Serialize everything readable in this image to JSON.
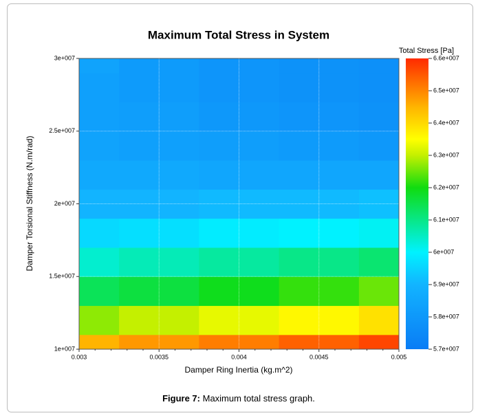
{
  "chart_data": {
    "type": "contour",
    "title": "Maximum Total Stress in System",
    "xlabel": "Damper Ring Inertia (kg.m^2)",
    "ylabel": "Damper Torsional Stiffness (N.m/rad)",
    "colorbar_label": "Total Stress [Pa]",
    "x": [
      0.003,
      0.0035,
      0.004,
      0.0045,
      0.005
    ],
    "y": [
      10000000,
      12000000,
      14000000,
      16000000,
      18000000,
      20000000,
      22000000,
      24000000,
      26000000,
      28000000,
      30000000
    ],
    "z": [
      [
        64500000,
        64800000,
        65100000,
        65400000,
        65700000
      ],
      [
        62700000,
        63000000,
        63300000,
        63600000,
        63900000
      ],
      [
        61400000,
        61600000,
        61900000,
        62200000,
        62500000
      ],
      [
        60400000,
        60600000,
        60800000,
        61000000,
        61200000
      ],
      [
        59600000,
        59700000,
        59900000,
        60000000,
        60100000
      ],
      [
        59000000,
        59000000,
        59100000,
        59100000,
        59200000
      ],
      [
        58600000,
        58600000,
        58500000,
        58500000,
        58500000
      ],
      [
        58400000,
        58300000,
        58200000,
        58100000,
        58000000
      ],
      [
        58300000,
        58200000,
        58000000,
        57900000,
        57800000
      ],
      [
        58300000,
        58100000,
        57900000,
        57800000,
        57700000
      ],
      [
        58400000,
        58100000,
        57900000,
        57800000,
        57700000
      ]
    ],
    "colorscale": [
      [
        57000000,
        "#0a7cf5"
      ],
      [
        59000000,
        "#12b4ff"
      ],
      [
        60000000,
        "#00f2ff"
      ],
      [
        62000000,
        "#10dc10"
      ],
      [
        63000000,
        "#c4f000"
      ],
      [
        63500000,
        "#ffff00"
      ],
      [
        64500000,
        "#ffb400"
      ],
      [
        66000000,
        "#ff2a00"
      ]
    ],
    "xlim": [
      0.003,
      0.005
    ],
    "ylim": [
      10000000,
      30000000
    ],
    "zlim": [
      57000000,
      66000000
    ],
    "xticks": [
      0.003,
      0.0035,
      0.004,
      0.0045,
      0.005
    ],
    "yticks": [
      {
        "value": 10000000,
        "label": "1e+007"
      },
      {
        "value": 15000000,
        "label": "1.5e+007"
      },
      {
        "value": 20000000,
        "label": "2e+007"
      },
      {
        "value": 25000000,
        "label": "2.5e+007"
      },
      {
        "value": 30000000,
        "label": "3e+007"
      }
    ],
    "zticks": [
      {
        "value": 57000000,
        "label": "5.7e+007"
      },
      {
        "value": 58000000,
        "label": "5.8e+007"
      },
      {
        "value": 59000000,
        "label": "5.9e+007"
      },
      {
        "value": 60000000,
        "label": "6e+007"
      },
      {
        "value": 61000000,
        "label": "6.1e+007"
      },
      {
        "value": 62000000,
        "label": "6.2e+007"
      },
      {
        "value": 63000000,
        "label": "6.3e+007"
      },
      {
        "value": 64000000,
        "label": "6.4e+007"
      },
      {
        "value": 65000000,
        "label": "6.5e+007"
      },
      {
        "value": 66000000,
        "label": "6.6e+007"
      }
    ],
    "grid": true
  },
  "caption": {
    "label": "Figure 7:",
    "text": " Maximum total stress graph."
  }
}
